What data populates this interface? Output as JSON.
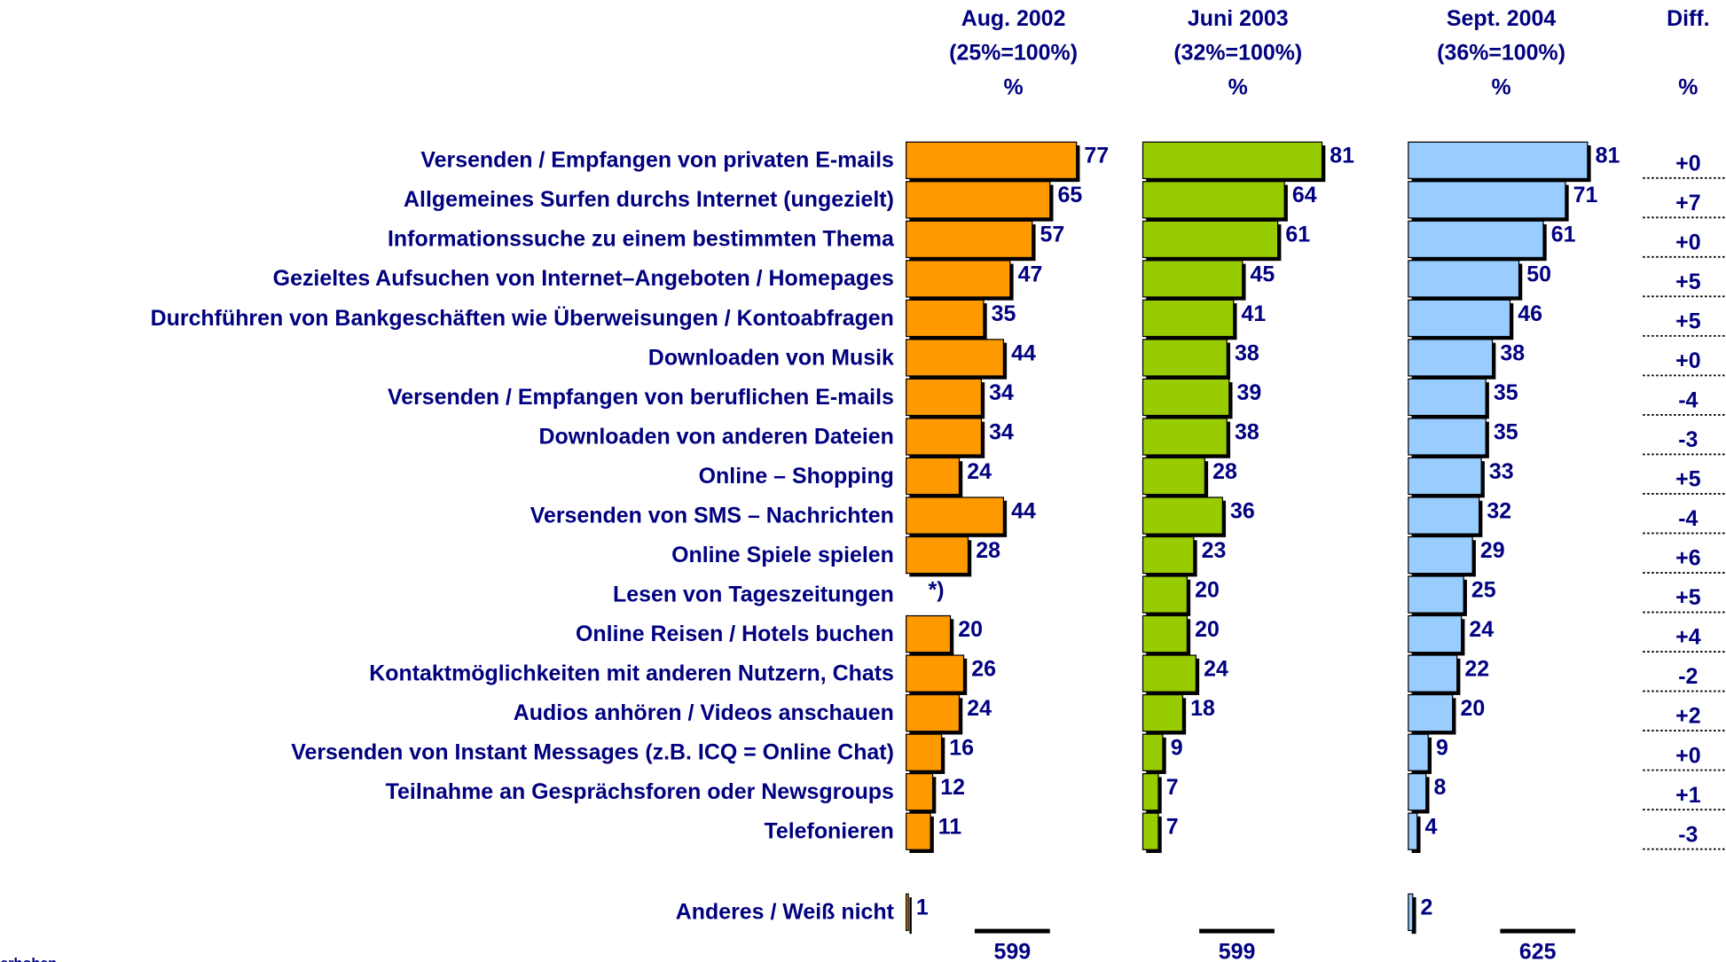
{
  "chart_data": {
    "type": "bar",
    "orientation": "horizontal",
    "categories": [
      "Versenden / Empfangen von privaten E-mails",
      "Allgemeines Surfen durchs Internet (ungezielt)",
      "Informationssuche zu einem bestimmten Thema",
      "Gezieltes Aufsuchen von Internet–Angeboten / Homepages",
      "Durchführen von Bankgeschäften wie Überweisungen / Kontoabfragen",
      "Downloaden von Musik",
      "Versenden / Empfangen von beruflichen E-mails",
      "Downloaden von anderen Dateien",
      "Online – Shopping",
      "Versenden von SMS – Nachrichten",
      "Online Spiele spielen",
      "Lesen von Tageszeitungen",
      "Online Reisen / Hotels buchen",
      "Kontaktmöglichkeiten mit anderen Nutzern, Chats",
      "Audios anhören / Videos anschauen",
      "Versenden von Instant Messages (z.B. ICQ = Online Chat)",
      "Teilnahme an Gesprächsforen oder Newsgroups",
      "Telefonieren",
      "Anderes / Weiß nicht"
    ],
    "series": [
      {
        "name": "Aug. 2002",
        "subtitle": "(25%=100%)",
        "unit": "%",
        "color": "#FF9900",
        "total": 599,
        "values": [
          77,
          65,
          57,
          47,
          35,
          44,
          34,
          34,
          24,
          44,
          28,
          null,
          20,
          26,
          24,
          16,
          12,
          11,
          1
        ],
        "value_labels": [
          null,
          null,
          null,
          null,
          null,
          null,
          null,
          null,
          null,
          null,
          null,
          "*)",
          null,
          null,
          null,
          null,
          null,
          null,
          null
        ]
      },
      {
        "name": "Juni 2003",
        "subtitle": "(32%=100%)",
        "unit": "%",
        "color": "#99CC00",
        "total": 599,
        "values": [
          81,
          64,
          61,
          45,
          41,
          38,
          39,
          38,
          28,
          36,
          23,
          20,
          20,
          24,
          18,
          9,
          7,
          7,
          null
        ]
      },
      {
        "name": "Sept. 2004",
        "subtitle": "(36%=100%)",
        "unit": "%",
        "color": "#99CCFF",
        "total": 625,
        "values": [
          81,
          71,
          61,
          50,
          46,
          38,
          35,
          35,
          33,
          32,
          29,
          25,
          24,
          22,
          20,
          9,
          8,
          4,
          2
        ]
      }
    ],
    "diff": {
      "name": "Diff.",
      "unit": "%",
      "values": [
        0,
        7,
        0,
        5,
        5,
        0,
        -4,
        -3,
        5,
        -4,
        6,
        5,
        4,
        -2,
        2,
        0,
        1,
        -3,
        null
      ],
      "value_labels": [
        "+0",
        "+7",
        "+0",
        "+5",
        "+5",
        "+0",
        "-4",
        "-3",
        "+5",
        "-4",
        "+6",
        "+5",
        "+4",
        "-2",
        "+2",
        "+0",
        "+1",
        "-3",
        null
      ]
    },
    "footnote": "erhoben"
  }
}
